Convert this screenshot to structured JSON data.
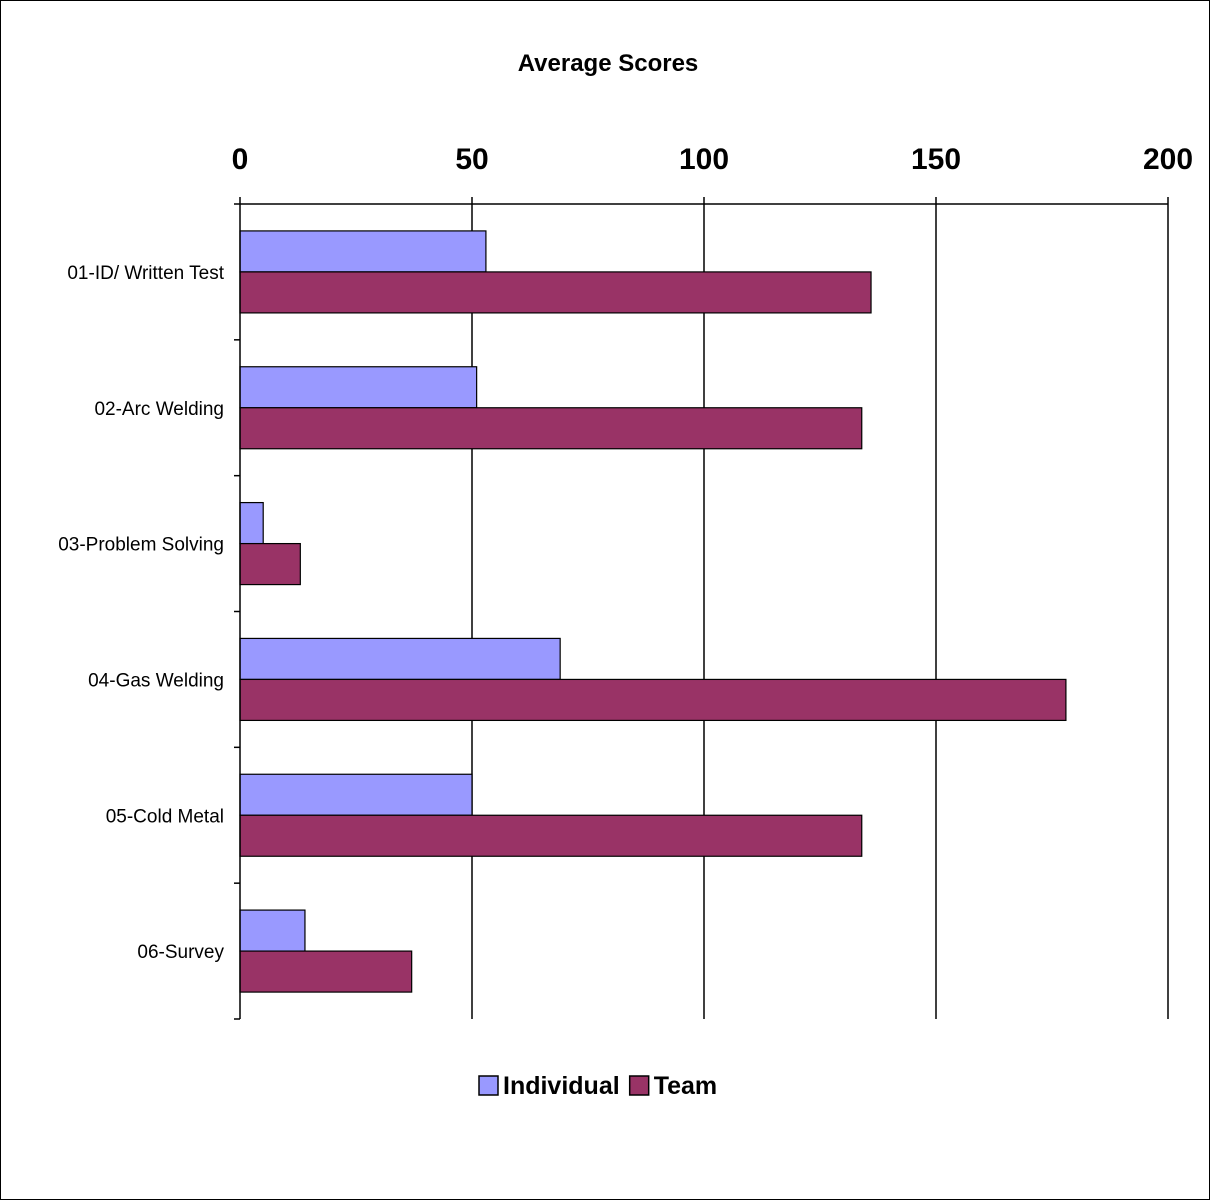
{
  "chart_data": {
    "type": "bar",
    "orientation": "horizontal",
    "title": "Average Scores",
    "xlabel": "",
    "ylabel": "",
    "xlim": [
      0,
      200
    ],
    "x_ticks": [
      "0",
      "50",
      "100",
      "150",
      "200"
    ],
    "x_axis_position": "top",
    "grid": true,
    "legend_position": "bottom",
    "categories": [
      "01-ID/ Written Test",
      "02-Arc Welding",
      "03-Problem Solving",
      "04-Gas Welding",
      "05-Cold Metal",
      "06-Survey"
    ],
    "series": [
      {
        "name": "Individual",
        "color": "#9999ff",
        "values": [
          53,
          51,
          5,
          69,
          50,
          14
        ]
      },
      {
        "name": "Team",
        "color": "#993366",
        "values": [
          136,
          134,
          13,
          178,
          134,
          37
        ]
      }
    ]
  }
}
